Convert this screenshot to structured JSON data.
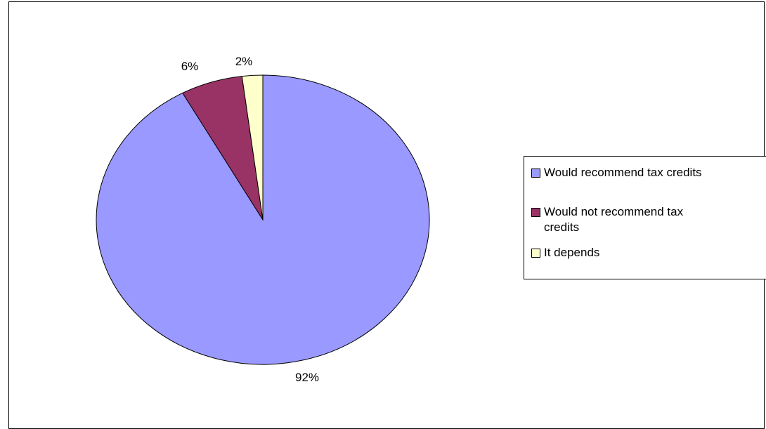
{
  "chart_data": {
    "type": "pie",
    "title": "",
    "slices": [
      {
        "label": "Would recommend tax credits",
        "value": 92,
        "display": "92%",
        "color": "#9999ff"
      },
      {
        "label": "Would not recommend tax credits",
        "value": 6,
        "display": "6%",
        "color": "#993366"
      },
      {
        "label": "It depends",
        "value": 2,
        "display": "2%",
        "color": "#ffffcc"
      }
    ],
    "start_angle": "12 o'clock",
    "direction": "clockwise",
    "legend_placement": "right"
  },
  "legend": {
    "items": [
      {
        "label": "Would recommend tax credits",
        "color": "#9999ff"
      },
      {
        "label": "Would not recommend tax credits",
        "color": "#993366"
      },
      {
        "label": "It depends",
        "color": "#ffffcc"
      }
    ]
  }
}
